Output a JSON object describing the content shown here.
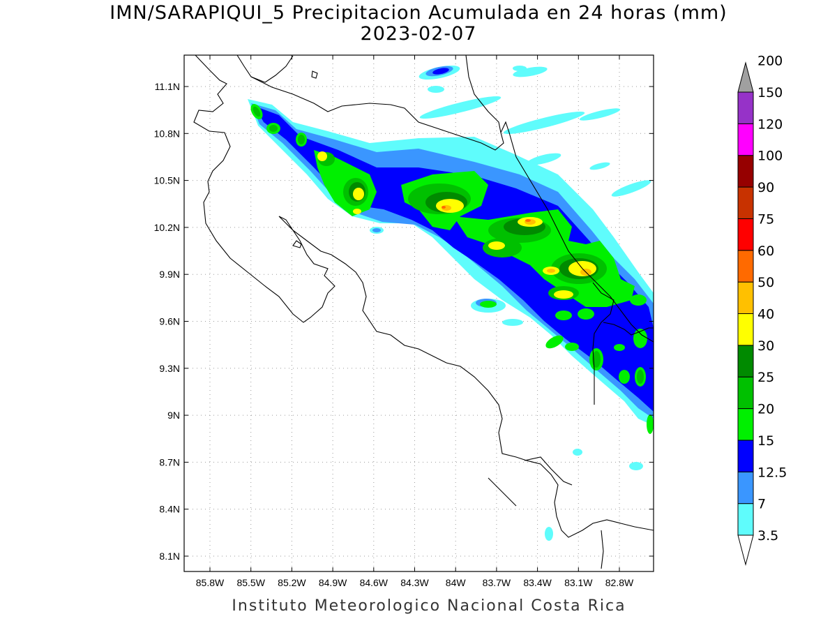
{
  "title": {
    "line1": "IMN/SARAPIQUI_5 Precipitacion Acumulada en 24 horas (mm)",
    "line2": "2023-02-07"
  },
  "footer": "Instituto Meteorologico Nacional Costa Rica",
  "map": {
    "lon_range": [
      -86.05,
      -82.55
    ],
    "lat_range": [
      8.0,
      11.3
    ],
    "x_ticks": [
      "85.8W",
      "85.5W",
      "85.2W",
      "84.9W",
      "84.6W",
      "84.3W",
      "84W",
      "83.7W",
      "83.4W",
      "83.1W",
      "82.8W"
    ],
    "y_ticks": [
      "11.1N",
      "10.8N",
      "10.5N",
      "10.2N",
      "9.9N",
      "9.6N",
      "9.3N",
      "9N",
      "8.7N",
      "8.4N",
      "8.1N"
    ],
    "grid": "dotted"
  },
  "colorbar": {
    "levels": [
      "3.5",
      "7",
      "12.5",
      "15",
      "20",
      "25",
      "30",
      "40",
      "50",
      "60",
      "75",
      "90",
      "100",
      "120",
      "150",
      "200"
    ],
    "colors": [
      "#5ffcfc",
      "#3a96ff",
      "#0000ff",
      "#00f000",
      "#00c000",
      "#008a00",
      "#ffff00",
      "#ffc000",
      "#ff6a00",
      "#ff0000",
      "#c83200",
      "#960000",
      "#ff00ff",
      "#9632c8",
      "#f2f2f2",
      "#a0a0a0"
    ]
  },
  "colors": {
    "precip_light": "#5ffcfc",
    "precip_7": "#3a96ff",
    "precip_12": "#0000ff",
    "precip_15": "#00f000",
    "precip_20": "#00c000",
    "precip_25": "#008a00",
    "precip_30": "#ffff00",
    "precip_40": "#ffc000",
    "precip_50": "#ff6a00"
  }
}
